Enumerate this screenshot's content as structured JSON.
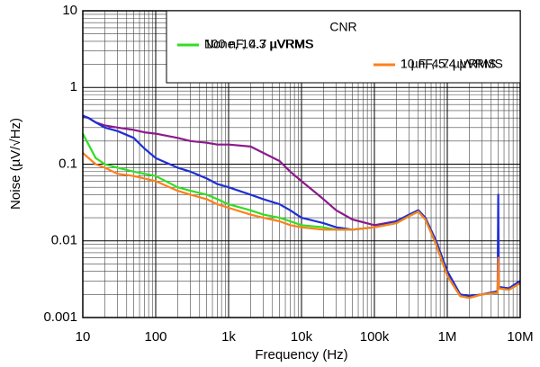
{
  "chart_data": {
    "type": "line",
    "x_label": "Frequency (Hz)",
    "y_label": "Noise (µV/√Hz)",
    "legend_title": "CNR",
    "legend_position": "upper right",
    "log_x": true,
    "log_y": true,
    "grid": true,
    "xlim": [
      10,
      10000000
    ],
    "ylim": [
      0.001,
      10
    ],
    "xticks": [
      10,
      100,
      {
        "value": 1000,
        "label": "1k"
      },
      {
        "value": 10000,
        "label": "10k"
      },
      {
        "value": 100000,
        "label": "100k"
      },
      {
        "value": 1000000,
        "label": "1M"
      },
      {
        "value": 10000000,
        "label": "10M"
      }
    ],
    "yticks": [
      0.001,
      0.01,
      0.1,
      1,
      10
    ],
    "x": [
      10,
      12,
      15,
      20,
      30,
      50,
      70,
      100,
      200,
      300,
      500,
      700,
      1000,
      2000,
      3000,
      5000,
      7000,
      10000,
      20000,
      30000,
      50000,
      100000,
      200000,
      300000,
      400000,
      500000,
      700000,
      1000000,
      1500000,
      2000000,
      3000000,
      4900000,
      5000000,
      5100000,
      7000000,
      10000000
    ],
    "series": [
      {
        "name": "None, 10.3 µVRMS",
        "color": "#8b1a8b",
        "values": [
          0.42,
          0.4,
          0.35,
          0.32,
          0.3,
          0.28,
          0.26,
          0.25,
          0.22,
          0.2,
          0.19,
          0.18,
          0.18,
          0.17,
          0.14,
          0.11,
          0.08,
          0.06,
          0.035,
          0.025,
          0.019,
          0.016,
          0.018,
          0.022,
          0.025,
          0.02,
          0.01,
          0.004,
          0.002,
          0.0019,
          0.002,
          0.0022,
          0.004,
          0.0025,
          0.0024,
          0.003
        ]
      },
      {
        "name": "10 nF, 5.4 µVRMS",
        "color": "#1f2fd6",
        "values": [
          0.43,
          0.4,
          0.35,
          0.3,
          0.27,
          0.22,
          0.16,
          0.12,
          0.09,
          0.08,
          0.065,
          0.055,
          0.05,
          0.04,
          0.035,
          0.03,
          0.025,
          0.02,
          0.017,
          0.015,
          0.014,
          0.015,
          0.018,
          0.022,
          0.025,
          0.02,
          0.01,
          0.004,
          0.002,
          0.0019,
          0.002,
          0.0022,
          0.04,
          0.0025,
          0.0024,
          0.003
        ]
      },
      {
        "name": "100 nF, 4.7  µVRMS",
        "color": "#33dd22",
        "values": [
          0.25,
          0.18,
          0.12,
          0.1,
          0.09,
          0.08,
          0.075,
          0.07,
          0.05,
          0.045,
          0.04,
          0.035,
          0.03,
          0.025,
          0.022,
          0.02,
          0.018,
          0.016,
          0.015,
          0.014,
          0.014,
          0.015,
          0.017,
          0.021,
          0.024,
          0.019,
          0.009,
          0.0035,
          0.0019,
          0.0018,
          0.002,
          0.0021,
          0.004,
          0.0024,
          0.0023,
          0.0028
        ]
      },
      {
        "name": "1 µF, 4.7  µVRMS",
        "color": "#ff7f1a",
        "values": [
          0.14,
          0.12,
          0.1,
          0.09,
          0.075,
          0.07,
          0.065,
          0.06,
          0.045,
          0.04,
          0.035,
          0.03,
          0.027,
          0.022,
          0.02,
          0.018,
          0.016,
          0.015,
          0.014,
          0.014,
          0.014,
          0.015,
          0.017,
          0.021,
          0.024,
          0.019,
          0.009,
          0.0035,
          0.0019,
          0.0018,
          0.002,
          0.0021,
          0.006,
          0.0024,
          0.0023,
          0.0028
        ]
      }
    ]
  }
}
